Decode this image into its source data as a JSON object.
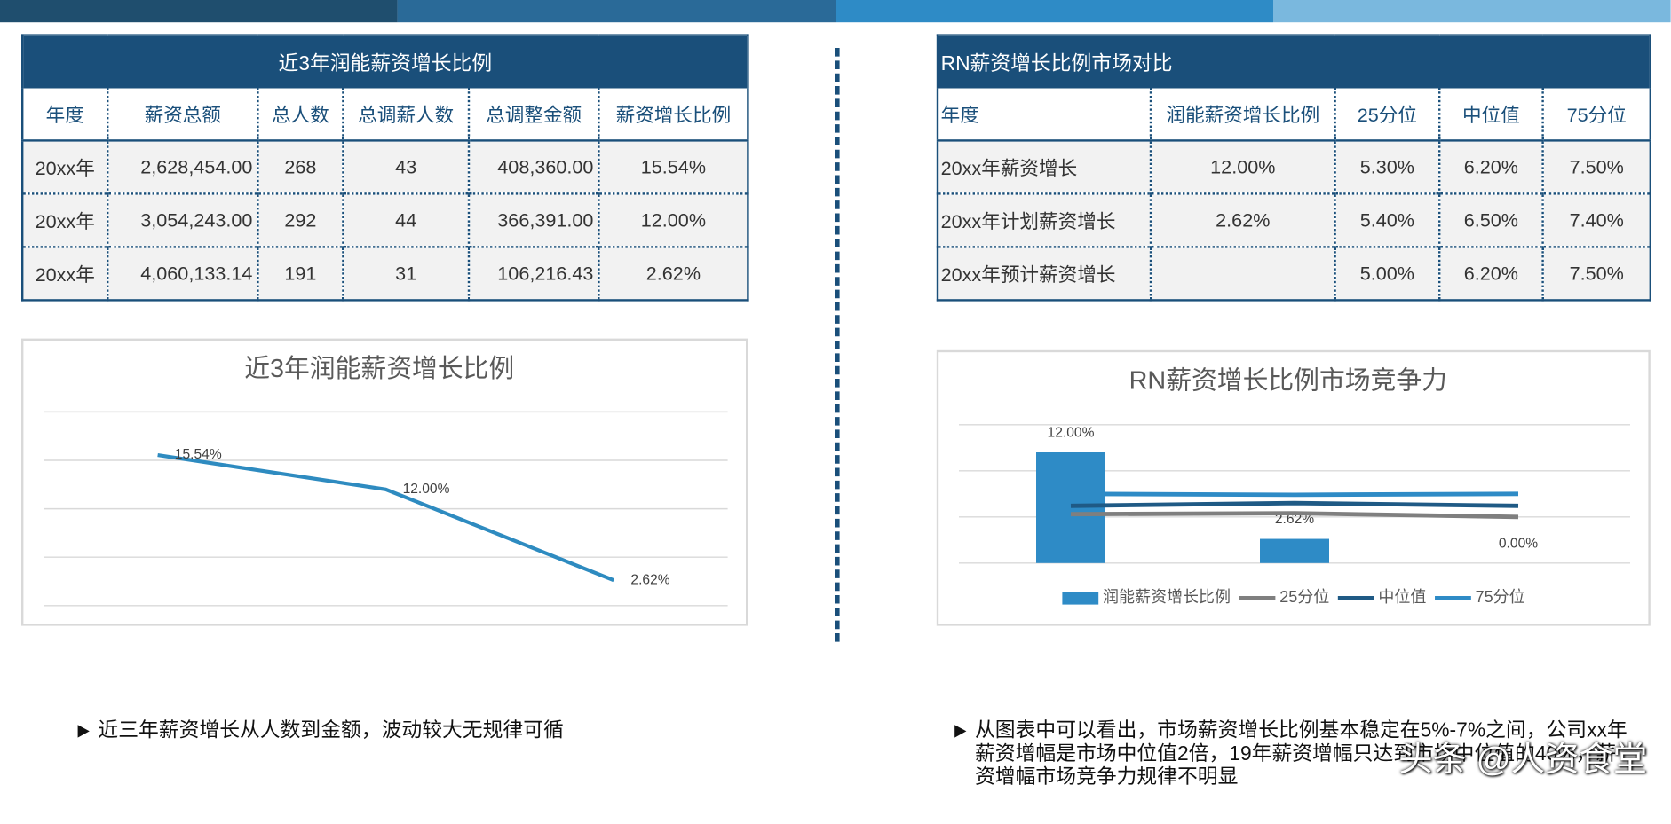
{
  "table_left": {
    "title": "近3年润能薪资增长比例",
    "header": [
      "年度",
      "薪资总额",
      "总人数",
      "总调薪人数",
      "总调整金额",
      "薪资增长比例"
    ],
    "rows": [
      [
        "20xx年",
        "2,628,454.00",
        "268",
        "43",
        "408,360.00",
        "15.54%"
      ],
      [
        "20xx年",
        "3,054,243.00",
        "292",
        "44",
        "366,391.00",
        "12.00%"
      ],
      [
        "20xx年",
        "4,060,133.14",
        "191",
        "31",
        "106,216.43",
        "2.62%"
      ]
    ]
  },
  "table_right": {
    "title": "RN薪资增长比例市场对比",
    "header": [
      "年度",
      "润能薪资增长比例",
      "25分位",
      "中位值",
      "75分位"
    ],
    "rows": [
      [
        "20xx年薪资增长",
        "12.00%",
        "5.30%",
        "6.20%",
        "7.50%"
      ],
      [
        "20xx年计划薪资增长",
        "2.62%",
        "5.40%",
        "6.50%",
        "7.40%"
      ],
      [
        "20xx年预计薪资增长",
        null,
        "5.00%",
        "6.20%",
        "7.50%"
      ]
    ]
  },
  "chart_data": [
    {
      "type": "line",
      "title": "近3年润能薪资增长比例",
      "categories": [
        null,
        null,
        null
      ],
      "values": [
        15.54,
        12.0,
        2.62
      ],
      "value_labels": [
        "15.54%",
        "12.00%",
        "2.62%"
      ],
      "color": "#2e8bc0",
      "ylim": [
        0,
        20
      ],
      "yticks": [
        0,
        5,
        10,
        15,
        20
      ],
      "grid": true
    },
    {
      "type": "combo",
      "title": "RN薪资增长比例市场竞争力",
      "categories": [
        null,
        null,
        null
      ],
      "series": [
        {
          "name": "润能薪资增长比例",
          "type": "bar",
          "color": "#2e8bc6",
          "values": [
            12.0,
            2.62,
            0.0
          ],
          "value_labels": [
            "12.00%",
            "2.62%",
            "0.00%"
          ]
        },
        {
          "name": "25分位",
          "type": "line",
          "color": "#7f7f7f",
          "values": [
            5.3,
            5.4,
            5.0
          ]
        },
        {
          "name": "中位值",
          "type": "line",
          "color": "#1f5a85",
          "values": [
            6.2,
            6.5,
            6.2
          ]
        },
        {
          "name": "75分位",
          "type": "line",
          "color": "#2e8bc6",
          "values": [
            7.5,
            7.4,
            7.5
          ]
        }
      ],
      "ylim": [
        0,
        15
      ],
      "yticks": [
        0,
        5,
        10,
        15
      ],
      "grid": true,
      "legend": "bottom"
    }
  ],
  "notes": [
    "近三年薪资增长从人数到金额，波动较大无规律可循",
    "从图表中可以看出，市场薪资增长比例基本稳定在5%-7%之间，公司xx年薪资增幅是市场中位值2倍，19年薪资增幅只达到市场中位值的40%，薪资增幅市场竞争力规律不明显"
  ],
  "watermark": "头条 @人资食堂"
}
